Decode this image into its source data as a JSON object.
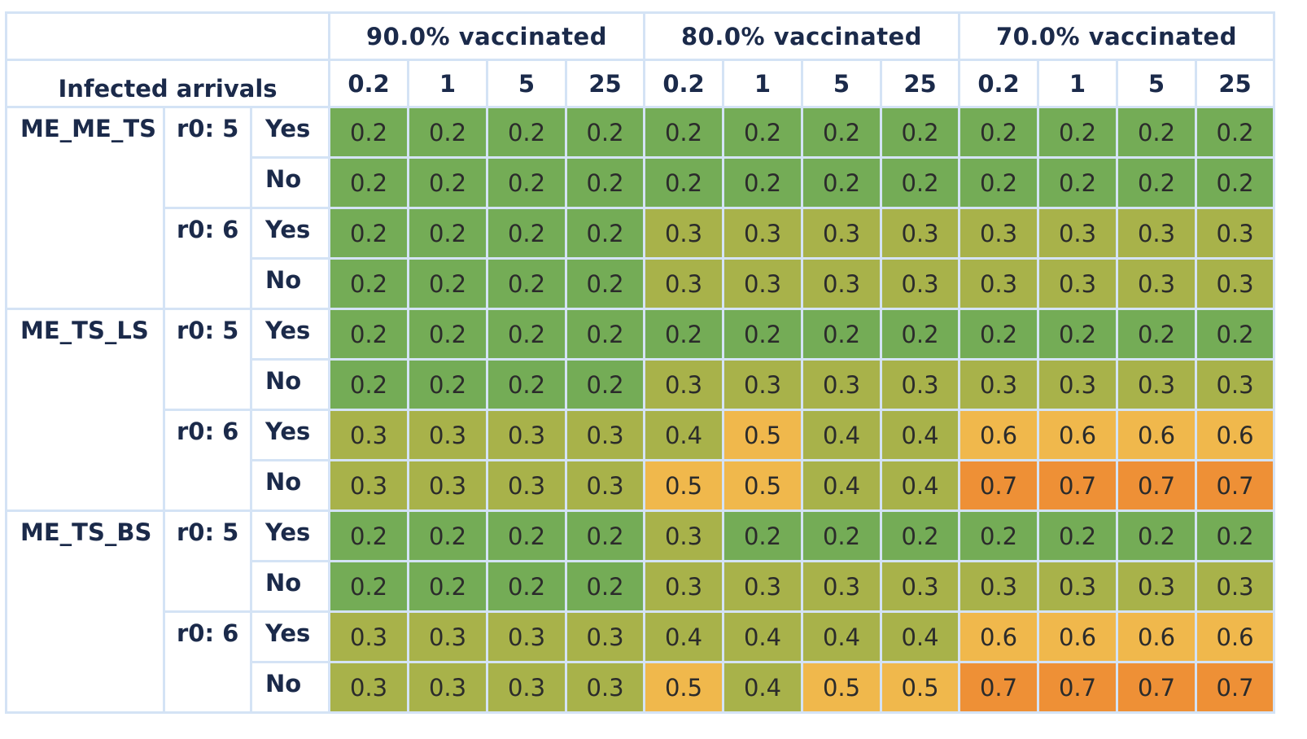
{
  "chart_data": {
    "type": "heatmap",
    "row_header_title": "Infected arrivals",
    "column_groups": [
      {
        "label": "90.0% vaccinated",
        "subcolumns": [
          "0.2",
          "1",
          "5",
          "25"
        ]
      },
      {
        "label": "80.0% vaccinated",
        "subcolumns": [
          "0.2",
          "1",
          "5",
          "25"
        ]
      },
      {
        "label": "70.0% vaccinated",
        "subcolumns": [
          "0.2",
          "1",
          "5",
          "25"
        ]
      }
    ],
    "models": [
      {
        "name": "ME_ME_TS",
        "r0_groups": [
          {
            "label": "r0: 5",
            "rows": [
              {
                "flag": "Yes",
                "values": [
                  0.2,
                  0.2,
                  0.2,
                  0.2,
                  0.2,
                  0.2,
                  0.2,
                  0.2,
                  0.2,
                  0.2,
                  0.2,
                  0.2
                ]
              },
              {
                "flag": "No",
                "values": [
                  0.2,
                  0.2,
                  0.2,
                  0.2,
                  0.2,
                  0.2,
                  0.2,
                  0.2,
                  0.2,
                  0.2,
                  0.2,
                  0.2
                ]
              }
            ]
          },
          {
            "label": "r0: 6",
            "rows": [
              {
                "flag": "Yes",
                "values": [
                  0.2,
                  0.2,
                  0.2,
                  0.2,
                  0.3,
                  0.3,
                  0.3,
                  0.3,
                  0.3,
                  0.3,
                  0.3,
                  0.3
                ]
              },
              {
                "flag": "No",
                "values": [
                  0.2,
                  0.2,
                  0.2,
                  0.2,
                  0.3,
                  0.3,
                  0.3,
                  0.3,
                  0.3,
                  0.3,
                  0.3,
                  0.3
                ]
              }
            ]
          }
        ]
      },
      {
        "name": "ME_TS_LS",
        "r0_groups": [
          {
            "label": "r0: 5",
            "rows": [
              {
                "flag": "Yes",
                "values": [
                  0.2,
                  0.2,
                  0.2,
                  0.2,
                  0.2,
                  0.2,
                  0.2,
                  0.2,
                  0.2,
                  0.2,
                  0.2,
                  0.2
                ]
              },
              {
                "flag": "No",
                "values": [
                  0.2,
                  0.2,
                  0.2,
                  0.2,
                  0.3,
                  0.3,
                  0.3,
                  0.3,
                  0.3,
                  0.3,
                  0.3,
                  0.3
                ]
              }
            ]
          },
          {
            "label": "r0: 6",
            "rows": [
              {
                "flag": "Yes",
                "values": [
                  0.3,
                  0.3,
                  0.3,
                  0.3,
                  0.4,
                  0.5,
                  0.4,
                  0.4,
                  0.6,
                  0.6,
                  0.6,
                  0.6
                ]
              },
              {
                "flag": "No",
                "values": [
                  0.3,
                  0.3,
                  0.3,
                  0.3,
                  0.5,
                  0.5,
                  0.4,
                  0.4,
                  0.7,
                  0.7,
                  0.7,
                  0.7
                ]
              }
            ]
          }
        ]
      },
      {
        "name": "ME_TS_BS",
        "r0_groups": [
          {
            "label": "r0: 5",
            "rows": [
              {
                "flag": "Yes",
                "values": [
                  0.2,
                  0.2,
                  0.2,
                  0.2,
                  0.3,
                  0.2,
                  0.2,
                  0.2,
                  0.2,
                  0.2,
                  0.2,
                  0.2
                ]
              },
              {
                "flag": "No",
                "values": [
                  0.2,
                  0.2,
                  0.2,
                  0.2,
                  0.3,
                  0.3,
                  0.3,
                  0.3,
                  0.3,
                  0.3,
                  0.3,
                  0.3
                ]
              }
            ]
          },
          {
            "label": "r0: 6",
            "rows": [
              {
                "flag": "Yes",
                "values": [
                  0.3,
                  0.3,
                  0.3,
                  0.3,
                  0.4,
                  0.4,
                  0.4,
                  0.4,
                  0.6,
                  0.6,
                  0.6,
                  0.6
                ]
              },
              {
                "flag": "No",
                "values": [
                  0.3,
                  0.3,
                  0.3,
                  0.3,
                  0.5,
                  0.4,
                  0.5,
                  0.5,
                  0.7,
                  0.7,
                  0.7,
                  0.7
                ]
              }
            ]
          }
        ]
      }
    ],
    "color_scale": {
      "0.2": "#74ac56",
      "0.3": "#a8b24a",
      "0.4": "#a8b24a",
      "0.5": "#f0b84c",
      "0.6": "#f0b84c",
      "0.7": "#ee9036"
    },
    "grid_color": "#d4e3f5",
    "text_color": "#1b2a4a"
  }
}
